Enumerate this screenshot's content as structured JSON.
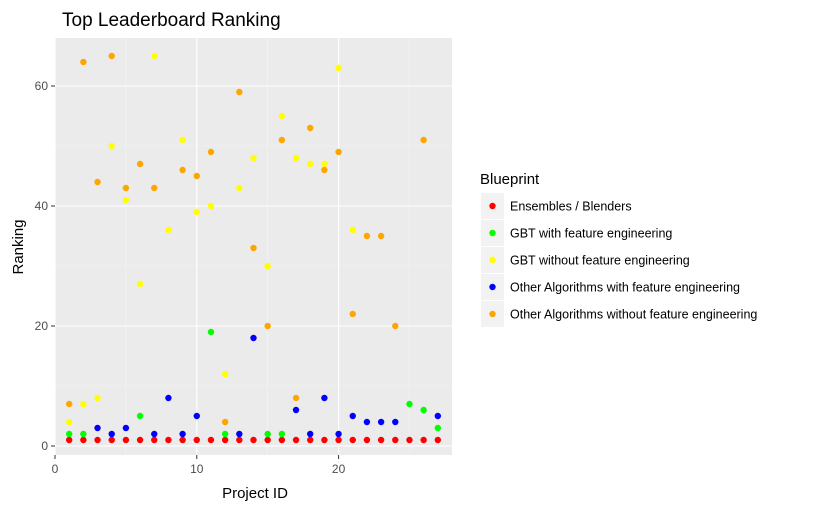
{
  "chart_data": {
    "type": "scatter",
    "title": "Top Leaderboard Ranking",
    "xlabel": "Project ID",
    "ylabel": "Ranking",
    "xlim": [
      0,
      28
    ],
    "ylim": [
      -1.5,
      68
    ],
    "xticks": [
      0,
      10,
      20
    ],
    "yticks": [
      0,
      20,
      40,
      60
    ],
    "grid": true,
    "legend": {
      "title": "Blueprint",
      "position": "right"
    },
    "series": [
      {
        "name": "Ensembles / Blenders",
        "color": "#ff0000",
        "points": [
          [
            1,
            1
          ],
          [
            2,
            1
          ],
          [
            3,
            1
          ],
          [
            4,
            1
          ],
          [
            5,
            1
          ],
          [
            6,
            1
          ],
          [
            7,
            1
          ],
          [
            8,
            1
          ],
          [
            9,
            1
          ],
          [
            10,
            1
          ],
          [
            11,
            1
          ],
          [
            12,
            1
          ],
          [
            13,
            1
          ],
          [
            14,
            1
          ],
          [
            15,
            1
          ],
          [
            16,
            1
          ],
          [
            17,
            1
          ],
          [
            18,
            1
          ],
          [
            19,
            1
          ],
          [
            20,
            1
          ],
          [
            21,
            1
          ],
          [
            22,
            1
          ],
          [
            23,
            1
          ],
          [
            24,
            1
          ],
          [
            25,
            1
          ],
          [
            26,
            1
          ],
          [
            27,
            1
          ]
        ]
      },
      {
        "name": "GBT with feature engineering",
        "color": "#00ff00",
        "points": [
          [
            1,
            2
          ],
          [
            2,
            2
          ],
          [
            6,
            5
          ],
          [
            11,
            19
          ],
          [
            12,
            2
          ],
          [
            15,
            2
          ],
          [
            16,
            2
          ],
          [
            25,
            7
          ],
          [
            26,
            6
          ],
          [
            27,
            3
          ]
        ]
      },
      {
        "name": "GBT without feature engineering",
        "color": "#ffff00",
        "points": [
          [
            1,
            4
          ],
          [
            2,
            7
          ],
          [
            3,
            8
          ],
          [
            4,
            50
          ],
          [
            5,
            41
          ],
          [
            6,
            27
          ],
          [
            7,
            65
          ],
          [
            8,
            36
          ],
          [
            9,
            51
          ],
          [
            10,
            39
          ],
          [
            11,
            40
          ],
          [
            12,
            12
          ],
          [
            13,
            43
          ],
          [
            14,
            48
          ],
          [
            15,
            30
          ],
          [
            16,
            55
          ],
          [
            17,
            48
          ],
          [
            18,
            47
          ],
          [
            19,
            47
          ],
          [
            20,
            63
          ],
          [
            21,
            36
          ]
        ]
      },
      {
        "name": "Other Algorithms with feature engineering",
        "color": "#0000ff",
        "points": [
          [
            3,
            3
          ],
          [
            4,
            2
          ],
          [
            5,
            3
          ],
          [
            7,
            2
          ],
          [
            8,
            8
          ],
          [
            9,
            2
          ],
          [
            10,
            5
          ],
          [
            13,
            2
          ],
          [
            14,
            18
          ],
          [
            17,
            6
          ],
          [
            18,
            2
          ],
          [
            19,
            8
          ],
          [
            20,
            2
          ],
          [
            21,
            5
          ],
          [
            22,
            4
          ],
          [
            23,
            4
          ],
          [
            24,
            4
          ],
          [
            27,
            5
          ]
        ]
      },
      {
        "name": "Other Algorithms without feature engineering",
        "color": "#ffa500",
        "points": [
          [
            1,
            7
          ],
          [
            2,
            64
          ],
          [
            3,
            44
          ],
          [
            4,
            65
          ],
          [
            5,
            43
          ],
          [
            6,
            47
          ],
          [
            7,
            43
          ],
          [
            9,
            46
          ],
          [
            10,
            45
          ],
          [
            11,
            49
          ],
          [
            12,
            4
          ],
          [
            13,
            59
          ],
          [
            14,
            33
          ],
          [
            15,
            20
          ],
          [
            16,
            51
          ],
          [
            17,
            8
          ],
          [
            18,
            53
          ],
          [
            19,
            46
          ],
          [
            20,
            49
          ],
          [
            21,
            22
          ],
          [
            22,
            35
          ],
          [
            23,
            35
          ],
          [
            24,
            20
          ],
          [
            26,
            51
          ]
        ]
      }
    ]
  }
}
